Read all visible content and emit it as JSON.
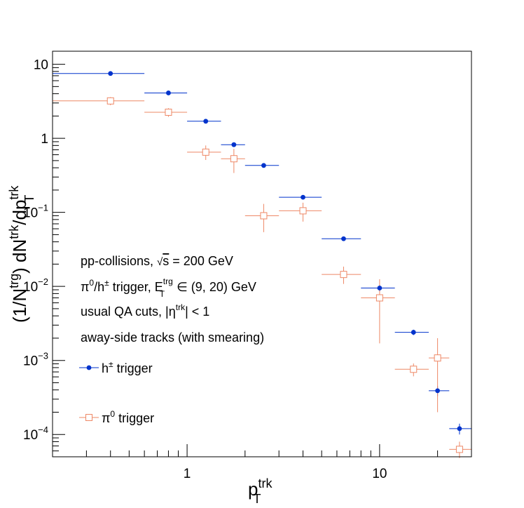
{
  "chart_data": {
    "type": "scatter",
    "x_scale": "log",
    "y_scale": "log",
    "xlim": [
      0.2,
      30
    ],
    "ylim": [
      5e-05,
      15
    ],
    "xlabel": {
      "main": "p",
      "sub": "T",
      "sup": "trk"
    },
    "ylabel": "(1/N^trg) dN^trk/dp_T^trk",
    "x_ticks": [
      {
        "value": 1,
        "label": "1"
      },
      {
        "value": 10,
        "label": "10"
      }
    ],
    "y_ticks": [
      {
        "value": 10,
        "mantissa": "10",
        "exp": ""
      },
      {
        "value": 1,
        "mantissa": "1",
        "exp": ""
      },
      {
        "value": 0.1,
        "mantissa": "10",
        "exp": "−1"
      },
      {
        "value": 0.01,
        "mantissa": "10",
        "exp": "−2"
      },
      {
        "value": 0.001,
        "mantissa": "10",
        "exp": "−3"
      },
      {
        "value": 0.0001,
        "mantissa": "10",
        "exp": "−4"
      }
    ],
    "annotations": [
      "pp-collisions, √s = 200 GeV",
      "π0/h± trigger, E_T^trg ∈ (9, 20) GeV",
      "usual QA cuts, |η^trk| < 1",
      "away-side tracks (with smearing)"
    ],
    "legend": {
      "placement": "lower-left"
    },
    "series": [
      {
        "name": "h± trigger",
        "color": "#0033cc",
        "marker": "filled-circle",
        "points": [
          {
            "x": 0.4,
            "xlo": 0.2,
            "xhi": 0.6,
            "y": 7.5,
            "ylo": 7.3,
            "yhi": 7.7
          },
          {
            "x": 0.8,
            "xlo": 0.6,
            "xhi": 1.0,
            "y": 4.1,
            "ylo": 4.0,
            "yhi": 4.2
          },
          {
            "x": 1.25,
            "xlo": 1.0,
            "xhi": 1.5,
            "y": 1.7,
            "ylo": 1.65,
            "yhi": 1.75
          },
          {
            "x": 1.75,
            "xlo": 1.5,
            "xhi": 2.0,
            "y": 0.82,
            "ylo": 0.79,
            "yhi": 0.85
          },
          {
            "x": 2.5,
            "xlo": 2.0,
            "xhi": 3.0,
            "y": 0.43,
            "ylo": 0.42,
            "yhi": 0.44
          },
          {
            "x": 4.0,
            "xlo": 3.0,
            "xhi": 5.0,
            "y": 0.16,
            "ylo": 0.155,
            "yhi": 0.165
          },
          {
            "x": 6.5,
            "xlo": 5.0,
            "xhi": 8.0,
            "y": 0.044,
            "ylo": 0.042,
            "yhi": 0.046
          },
          {
            "x": 10,
            "xlo": 8.0,
            "xhi": 12,
            "y": 0.0095,
            "ylo": 0.0085,
            "yhi": 0.0105
          },
          {
            "x": 15,
            "xlo": 12,
            "xhi": 18,
            "y": 0.0024,
            "ylo": 0.0022,
            "yhi": 0.0026
          },
          {
            "x": 20,
            "xlo": 18,
            "xhi": 23,
            "y": 0.00039,
            "ylo": 0.00033,
            "yhi": 0.00045
          },
          {
            "x": 26,
            "xlo": 23,
            "xhi": 30,
            "y": 0.00012,
            "ylo": 0.0001,
            "yhi": 0.00014
          }
        ]
      },
      {
        "name": "π0 trigger",
        "color": "#ee8866",
        "marker": "open-square",
        "points": [
          {
            "x": 0.4,
            "xlo": 0.2,
            "xhi": 0.6,
            "y": 3.2,
            "ylo": 2.8,
            "yhi": 3.6
          },
          {
            "x": 0.8,
            "xlo": 0.6,
            "xhi": 1.0,
            "y": 2.25,
            "ylo": 1.95,
            "yhi": 2.55
          },
          {
            "x": 1.25,
            "xlo": 1.0,
            "xhi": 1.5,
            "y": 0.65,
            "ylo": 0.51,
            "yhi": 0.8
          },
          {
            "x": 1.75,
            "xlo": 1.5,
            "xhi": 2.0,
            "y": 0.53,
            "ylo": 0.34,
            "yhi": 0.72
          },
          {
            "x": 2.5,
            "xlo": 2.0,
            "xhi": 3.0,
            "y": 0.09,
            "ylo": 0.054,
            "yhi": 0.13
          },
          {
            "x": 4.0,
            "xlo": 3.0,
            "xhi": 5.0,
            "y": 0.105,
            "ylo": 0.075,
            "yhi": 0.135
          },
          {
            "x": 6.5,
            "xlo": 5.0,
            "xhi": 8.0,
            "y": 0.0145,
            "ylo": 0.0108,
            "yhi": 0.0185
          },
          {
            "x": 10,
            "xlo": 8.0,
            "xhi": 12,
            "y": 0.007,
            "ylo": 0.0017,
            "yhi": 0.0125
          },
          {
            "x": 15,
            "xlo": 12,
            "xhi": 18,
            "y": 0.00076,
            "ylo": 0.00061,
            "yhi": 0.00091
          },
          {
            "x": 20,
            "xlo": 18,
            "xhi": 23,
            "y": 0.00108,
            "ylo": 0.0002,
            "yhi": 0.002
          },
          {
            "x": 26,
            "xlo": 23,
            "xhi": 30,
            "y": 6.3e-05,
            "ylo": 4.8e-05,
            "yhi": 8e-05
          }
        ]
      }
    ]
  }
}
